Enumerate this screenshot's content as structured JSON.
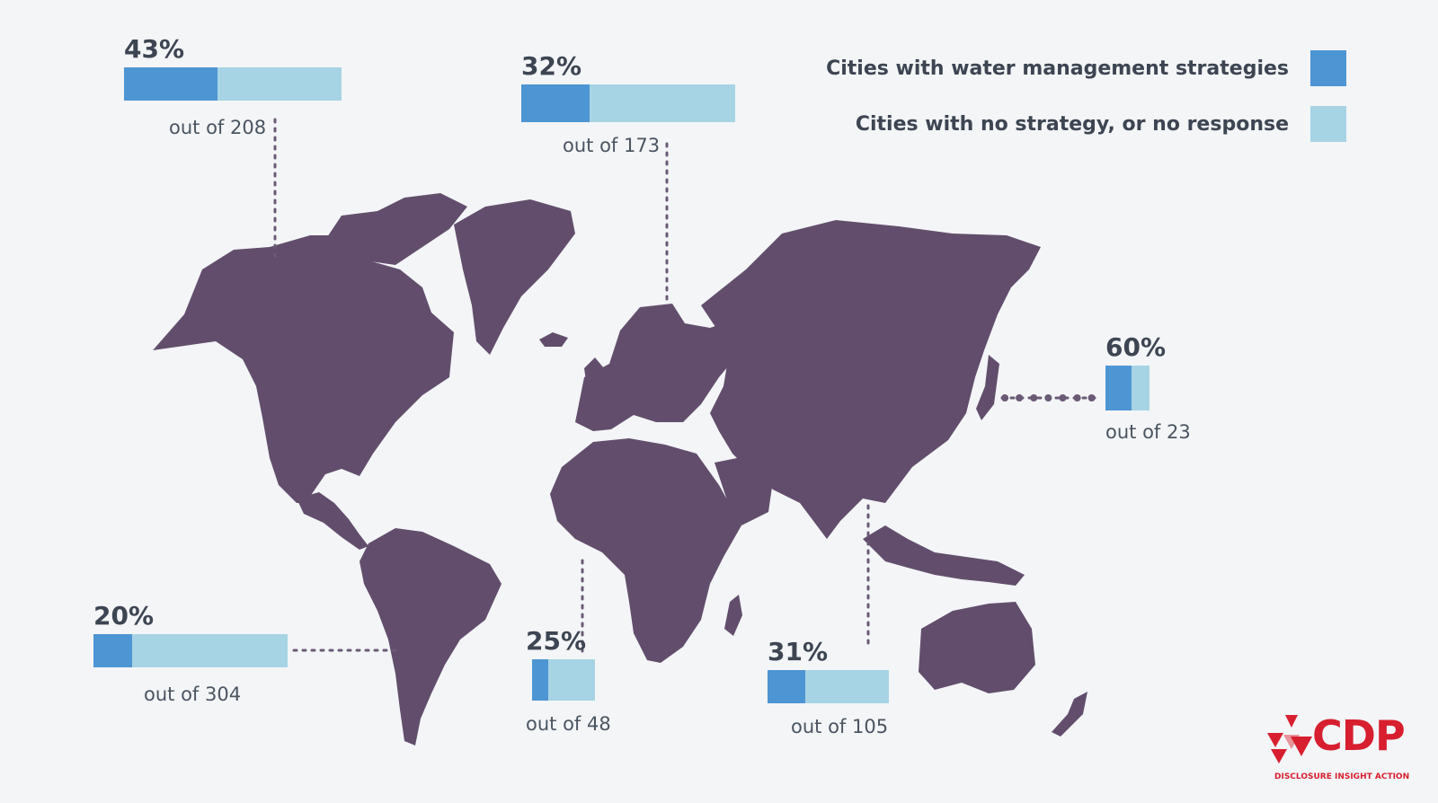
{
  "colors": {
    "background": "#f3f5f7",
    "land": "#624e6c",
    "with_strategy": "#4e95d3",
    "no_strategy": "#a7d4e4",
    "connector": "#6b5a75",
    "brand": "#d71f2f"
  },
  "legend": {
    "items": [
      {
        "label": "Cities with water management strategies",
        "color": "#4e95d3"
      },
      {
        "label": "Cities with no strategy, or no response",
        "color": "#a7d4e4"
      }
    ]
  },
  "regions": [
    {
      "id": "north-america",
      "percent_label": "43%",
      "share": 0.43,
      "total_label": "out of 208",
      "total": 208
    },
    {
      "id": "europe",
      "percent_label": "32%",
      "share": 0.32,
      "total_label": "out of 173",
      "total": 173
    },
    {
      "id": "east-asia",
      "percent_label": "60%",
      "share": 0.6,
      "total_label": "out of 23",
      "total": 23
    },
    {
      "id": "latin-america",
      "percent_label": "20%",
      "share": 0.2,
      "total_label": "out of 304",
      "total": 304
    },
    {
      "id": "africa",
      "percent_label": "25%",
      "share": 0.25,
      "total_label": "out of 48",
      "total": 48
    },
    {
      "id": "south-southeast-asia",
      "percent_label": "31%",
      "share": 0.31,
      "total_label": "out of 105",
      "total": 105
    }
  ],
  "logo": {
    "wordmark": "CDP",
    "tagline": "DISCLOSURE INSIGHT ACTION",
    "icon": "cdp-triangles-icon"
  }
}
